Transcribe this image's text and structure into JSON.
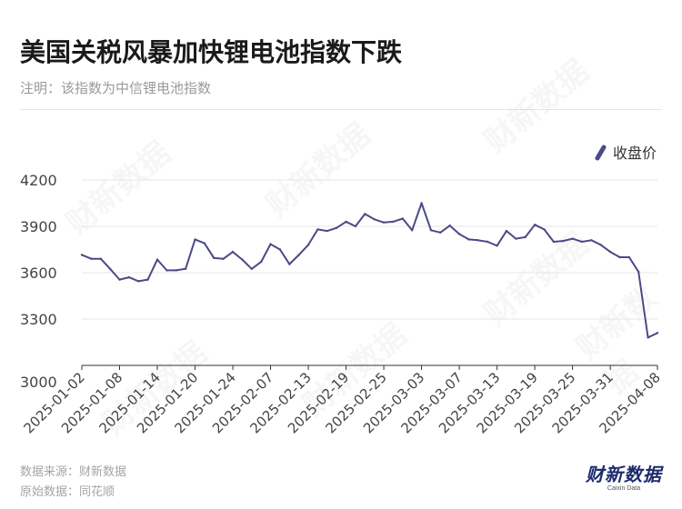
{
  "header": {
    "title": "美国关税风暴加快锂电池指数下跌",
    "note": "注明：该指数为中信锂电池指数"
  },
  "footer": {
    "source": "数据来源：财新数据",
    "origin": "原始数据：同花顺"
  },
  "logo": {
    "main": "财新数据",
    "sub": "Caixin Data"
  },
  "colors": {
    "line": "#4b4a85",
    "grid": "#e6e6e6",
    "axis": "#333333",
    "tick_text": "#444444"
  },
  "chart_data": {
    "type": "line",
    "title": "美国关税风暴加快锂电池指数下跌",
    "x": [
      "2025-01-02",
      "2025-01-03",
      "2025-01-06",
      "2025-01-07",
      "2025-01-08",
      "2025-01-09",
      "2025-01-10",
      "2025-01-13",
      "2025-01-14",
      "2025-01-15",
      "2025-01-16",
      "2025-01-17",
      "2025-01-20",
      "2025-01-21",
      "2025-01-22",
      "2025-01-23",
      "2025-01-24",
      "2025-01-27",
      "2025-02-05",
      "2025-02-06",
      "2025-02-07",
      "2025-02-10",
      "2025-02-11",
      "2025-02-12",
      "2025-02-13",
      "2025-02-14",
      "2025-02-17",
      "2025-02-18",
      "2025-02-19",
      "2025-02-20",
      "2025-02-21",
      "2025-02-24",
      "2025-02-25",
      "2025-02-26",
      "2025-02-27",
      "2025-02-28",
      "2025-03-03",
      "2025-03-04",
      "2025-03-05",
      "2025-03-06",
      "2025-03-07",
      "2025-03-10",
      "2025-03-11",
      "2025-03-12",
      "2025-03-13",
      "2025-03-14",
      "2025-03-17",
      "2025-03-18",
      "2025-03-19",
      "2025-03-20",
      "2025-03-21",
      "2025-03-24",
      "2025-03-25",
      "2025-03-26",
      "2025-03-27",
      "2025-03-28",
      "2025-03-31",
      "2025-04-01",
      "2025-04-02",
      "2025-04-03",
      "2025-04-07",
      "2025-04-08"
    ],
    "x_tick_labels": [
      "2025-01-02",
      "2025-01-08",
      "2025-01-14",
      "2025-01-20",
      "2025-01-24",
      "2025-02-07",
      "2025-02-13",
      "2025-02-19",
      "2025-02-25",
      "2025-03-03",
      "2025-03-07",
      "2025-03-13",
      "2025-03-19",
      "2025-03-25",
      "2025-03-31",
      "2025-04-08"
    ],
    "series": [
      {
        "name": "收盘价",
        "values": [
          3715,
          3690,
          3690,
          3625,
          3555,
          3570,
          3545,
          3555,
          3685,
          3615,
          3615,
          3625,
          3815,
          3790,
          3695,
          3690,
          3735,
          3685,
          3625,
          3670,
          3785,
          3750,
          3655,
          3715,
          3780,
          3880,
          3870,
          3890,
          3930,
          3900,
          3980,
          3945,
          3925,
          3930,
          3950,
          3875,
          4050,
          3875,
          3860,
          3905,
          3850,
          3815,
          3810,
          3800,
          3775,
          3870,
          3820,
          3830,
          3910,
          3880,
          3800,
          3805,
          3820,
          3800,
          3810,
          3780,
          3735,
          3700,
          3700,
          3605,
          3180,
          3210
        ]
      }
    ],
    "ylim": [
      3000,
      4200
    ],
    "yticks": [
      3000,
      3300,
      3600,
      3900,
      4200
    ],
    "legend": "top-right",
    "grid": true,
    "xlabel": "",
    "ylabel": ""
  }
}
